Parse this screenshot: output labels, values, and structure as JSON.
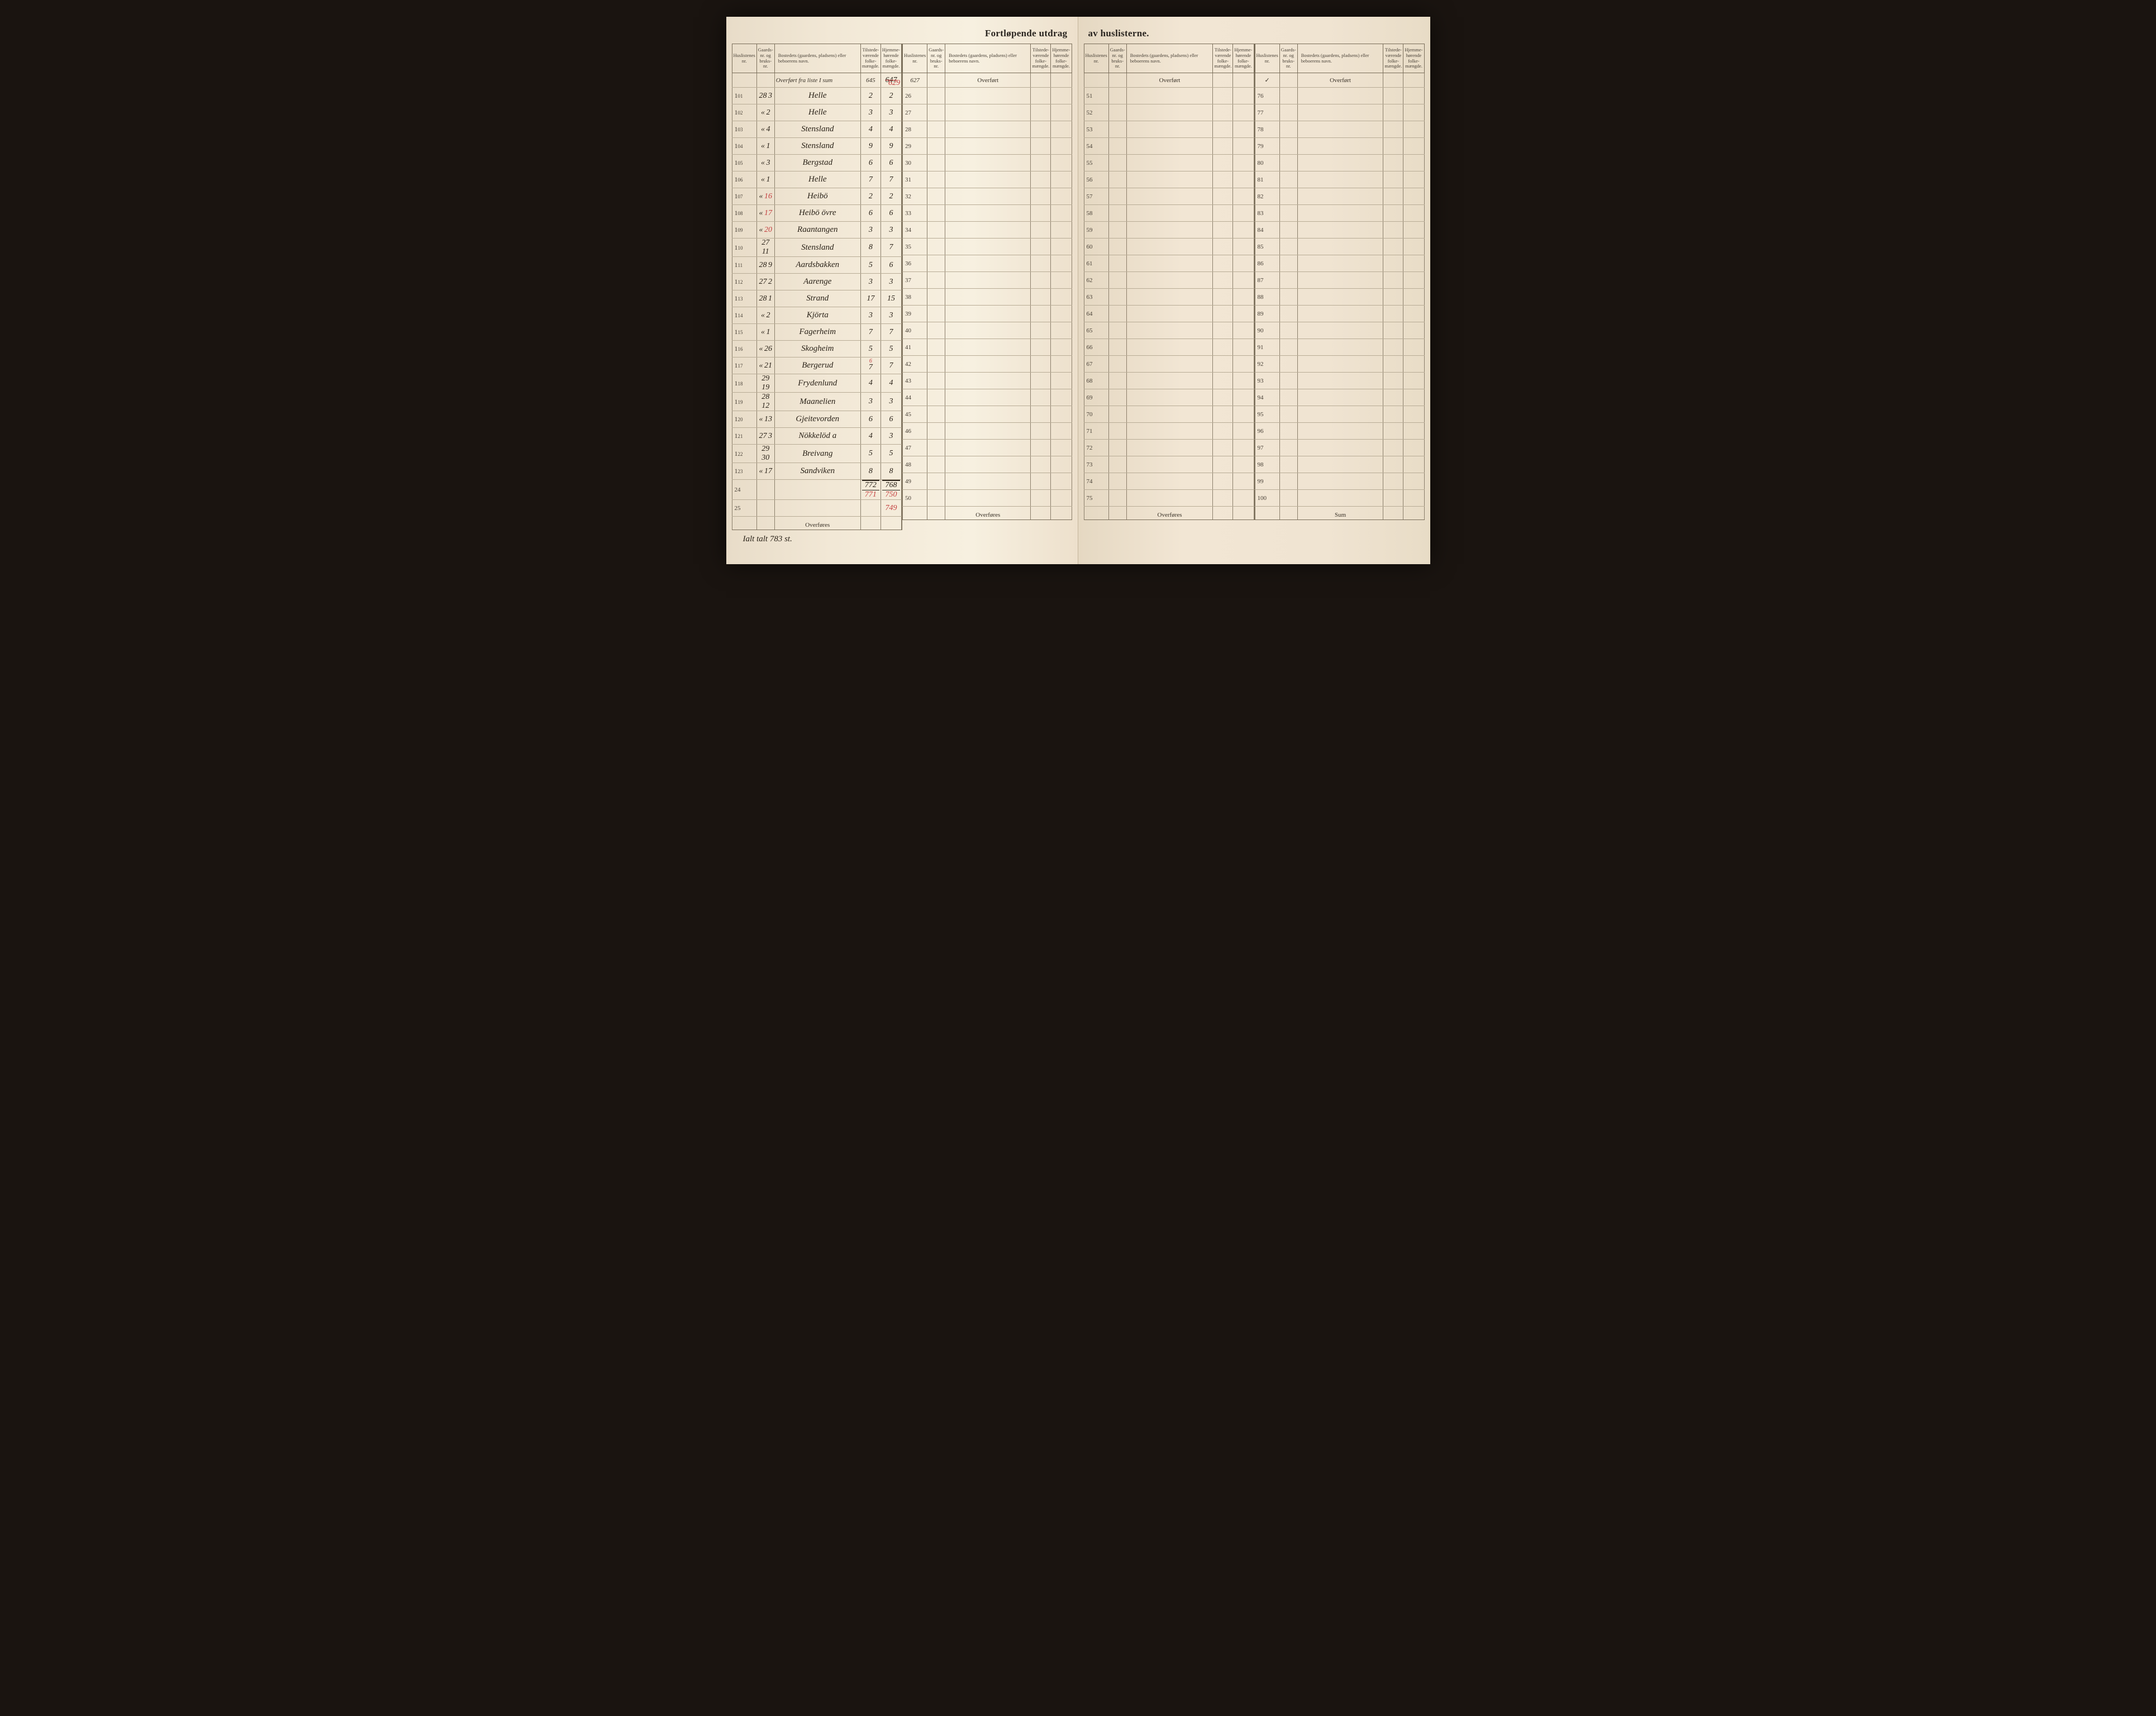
{
  "title_left": "Fortløpende utdrag",
  "title_right": "av huslisterne.",
  "headers": {
    "huslist": "Huslistenes nr.",
    "gaards": "Gaards-nr. og bruks-nr.",
    "bosted": "Bostedets (gaardens, pladsens) eller beboerens navn.",
    "tilstede": "Tilstede-værende folke-mængde.",
    "hjemme": "Hjemme-hørende folke-mængde."
  },
  "overfort_label": "Overført",
  "overfores_label": "Overføres",
  "sum_label": "Sum",
  "top_row": {
    "text": "Overført fra liste I sum",
    "tilst": "645",
    "hjemme_struck": "647",
    "hjemme_red": "627",
    "below_red": "629"
  },
  "bottom_note": "Ialt talt 783 st.",
  "left_col1": [
    {
      "hl": "1",
      "pn": "01",
      "g1": "28",
      "g2": "3",
      "name": "Helle",
      "t": "2",
      "h": "2"
    },
    {
      "hl": "1",
      "pn": "02",
      "g1": "«",
      "g2": "2",
      "name": "Helle",
      "t": "3",
      "h": "3"
    },
    {
      "hl": "1",
      "pn": "03",
      "g1": "«",
      "g2": "4",
      "name": "Stensland",
      "t": "4",
      "h": "4"
    },
    {
      "hl": "1",
      "pn": "04",
      "g1": "«",
      "g2": "1",
      "name": "Stensland",
      "t": "9",
      "h": "9"
    },
    {
      "hl": "1",
      "pn": "05",
      "g1": "«",
      "g2": "3",
      "name": "Bergstad",
      "t": "6",
      "h": "6"
    },
    {
      "hl": "1",
      "pn": "06",
      "g1": "«",
      "g2": "1",
      "name": "Helle",
      "t": "7",
      "h": "7"
    },
    {
      "hl": "1",
      "pn": "07",
      "g1": "«",
      "g2": "16",
      "name": "Heibö",
      "t": "2",
      "h": "2",
      "g2_red": true
    },
    {
      "hl": "1",
      "pn": "08",
      "g1": "«",
      "g2": "17",
      "name": "Heibö övre",
      "t": "6",
      "h": "6",
      "g2_red": true
    },
    {
      "hl": "1",
      "pn": "09",
      "g1": "«",
      "g2": "20",
      "name": "Raantangen",
      "t": "3",
      "h": "3",
      "g2_red": true
    },
    {
      "hl": "1",
      "pn": "10",
      "g1": "27",
      "g2": "11",
      "name": "Stensland",
      "t": "8",
      "h": "7"
    },
    {
      "hl": "1",
      "pn": "11",
      "g1": "28",
      "g2": "9",
      "name": "Aardsbakken",
      "t": "5",
      "h": "6"
    },
    {
      "hl": "1",
      "pn": "12",
      "g1": "27",
      "g2": "2",
      "name": "Aarenge",
      "t": "3",
      "h": "3"
    },
    {
      "hl": "1",
      "pn": "13",
      "g1": "28",
      "g2": "1",
      "name": "Strand",
      "t": "17",
      "h": "15"
    },
    {
      "hl": "1",
      "pn": "14",
      "g1": "«",
      "g2": "2",
      "name": "Kjörta",
      "t": "3",
      "h": "3"
    },
    {
      "hl": "1",
      "pn": "15",
      "g1": "«",
      "g2": "1",
      "name": "Fagerheim",
      "t": "7",
      "h": "7"
    },
    {
      "hl": "1",
      "pn": "16",
      "g1": "«",
      "g2": "26",
      "name": "Skogheim",
      "t": "5",
      "h": "5"
    },
    {
      "hl": "1",
      "pn": "17",
      "g1": "«",
      "g2": "21",
      "name": "Bergerud",
      "t": "7",
      "h": "7",
      "t_above": "6"
    },
    {
      "hl": "1",
      "pn": "18",
      "g1": "29",
      "g2": "19",
      "name": "Frydenlund",
      "t": "4",
      "h": "4"
    },
    {
      "hl": "1",
      "pn": "19",
      "g1": "28",
      "g2": "12",
      "name": "Maanelien",
      "t": "3",
      "h": "3"
    },
    {
      "hl": "1",
      "pn": "20",
      "g1": "«",
      "g2": "13",
      "name": "Gjeitevorden",
      "t": "6",
      "h": "6"
    },
    {
      "hl": "1",
      "pn": "21",
      "g1": "27",
      "g2": "3",
      "name": "Nökkelöd a",
      "t": "4",
      "h": "3"
    },
    {
      "hl": "1",
      "pn": "22",
      "g1": "29",
      "g2": "30",
      "name": "Breivang",
      "t": "5",
      "h": "5"
    },
    {
      "hl": "1",
      "pn": "23",
      "g1": "«",
      "g2": "17",
      "name": "Sandviken",
      "t": "8",
      "h": "8"
    }
  ],
  "totals": {
    "t": "772",
    "h": "768",
    "t_red": "771",
    "h_red": "750",
    "h_red2": "749"
  },
  "left_col2_nums": [
    "26",
    "27",
    "28",
    "29",
    "30",
    "31",
    "32",
    "33",
    "34",
    "35",
    "36",
    "37",
    "38",
    "39",
    "40",
    "41",
    "42",
    "43",
    "44",
    "45",
    "46",
    "47",
    "48",
    "49",
    "50"
  ],
  "right_col1_nums": [
    "51",
    "52",
    "53",
    "54",
    "55",
    "56",
    "57",
    "58",
    "59",
    "60",
    "61",
    "62",
    "63",
    "64",
    "65",
    "66",
    "67",
    "68",
    "69",
    "70",
    "71",
    "72",
    "73",
    "74",
    "75"
  ],
  "right_col2_nums": [
    "76",
    "77",
    "78",
    "79",
    "80",
    "81",
    "82",
    "83",
    "84",
    "85",
    "86",
    "87",
    "88",
    "89",
    "90",
    "91",
    "92",
    "93",
    "94",
    "95",
    "96",
    "97",
    "98",
    "99",
    "100"
  ],
  "red_mark": "✓"
}
